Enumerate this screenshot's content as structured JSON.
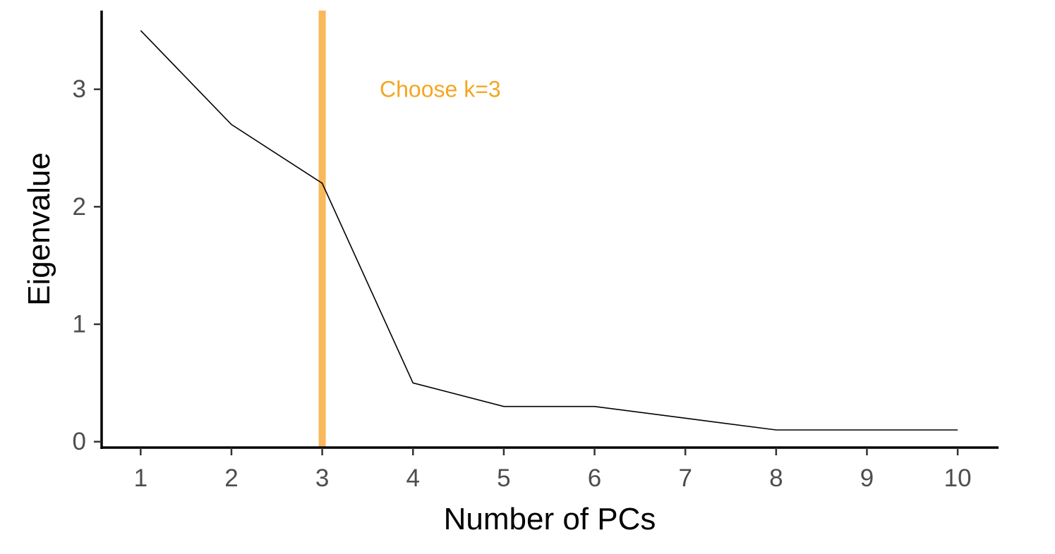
{
  "chart_data": {
    "type": "line",
    "title": "",
    "xlabel": "Number of PCs",
    "ylabel": "Eigenvalue",
    "x": [
      1,
      2,
      3,
      4,
      5,
      6,
      7,
      8,
      9,
      10
    ],
    "x_ticks": [
      "1",
      "2",
      "3",
      "4",
      "5",
      "6",
      "7",
      "8",
      "9",
      "10"
    ],
    "y_ticks": [
      "0",
      "1",
      "2",
      "3"
    ],
    "xlim": [
      0.57,
      10.45
    ],
    "ylim": [
      -0.05,
      3.67
    ],
    "series": [
      {
        "values": [
          3.5,
          2.7,
          2.2,
          0.5,
          0.3,
          0.3,
          0.2,
          0.1,
          0.1,
          0.1
        ],
        "color": "#000000"
      }
    ],
    "vline": {
      "x": 3,
      "color": "#F9B95A"
    },
    "annotation": {
      "text": "Choose k=3",
      "x": 4.3,
      "y": 3.0,
      "color": "#F5A623"
    },
    "grid": false,
    "legend": "none"
  }
}
